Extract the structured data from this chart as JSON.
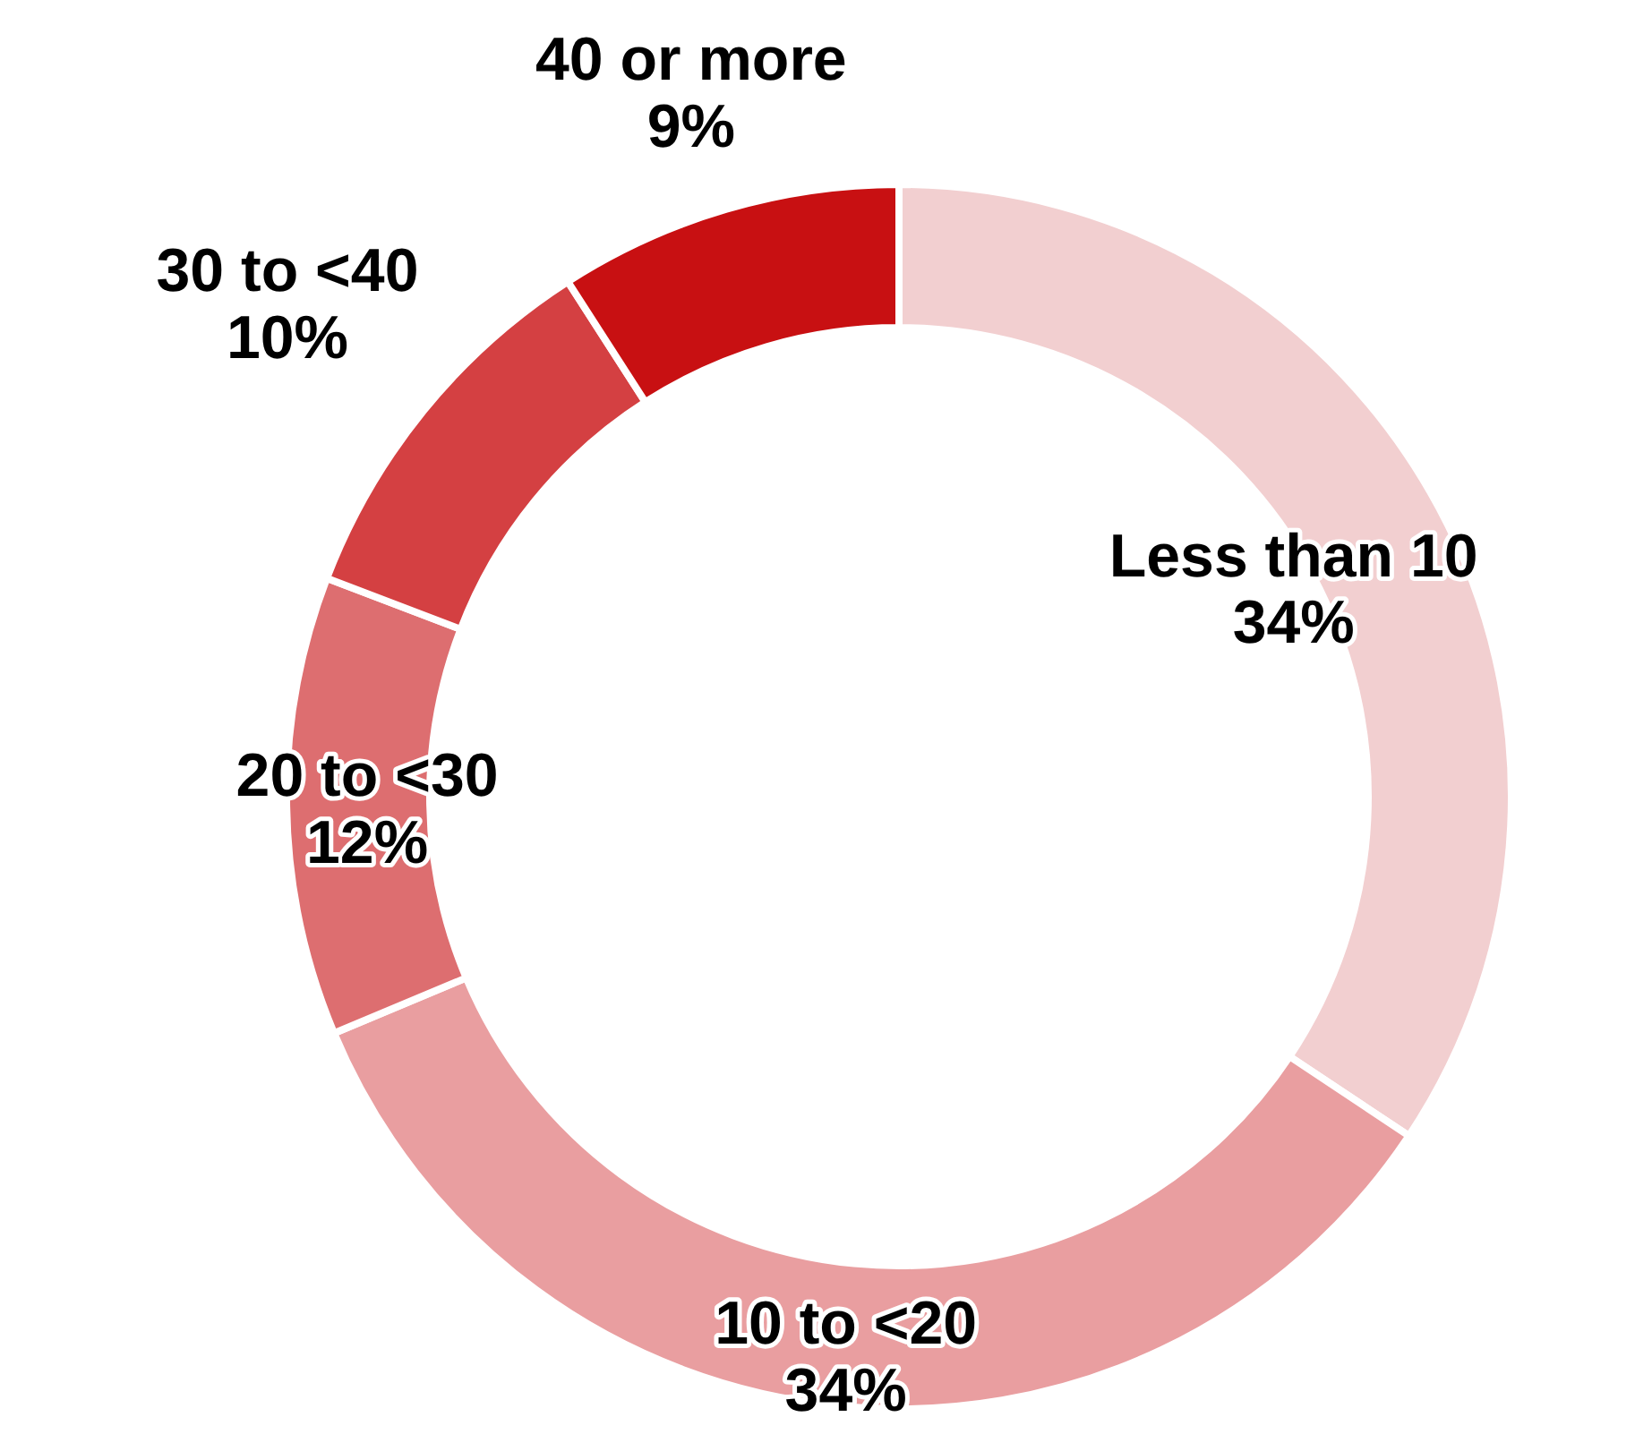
{
  "chart_data": {
    "type": "donut",
    "categories": [
      "Less than 10",
      "10 to <20",
      "20 to <30",
      "30 to <40",
      "40 or more"
    ],
    "values": [
      34,
      34,
      12,
      10,
      9
    ],
    "colors": [
      "#f2cfd0",
      "#e99ea0",
      "#dd6e70",
      "#d44042",
      "#c81012"
    ],
    "value_labels": [
      "34%",
      "34%",
      "12%",
      "10%",
      "9%"
    ],
    "legend": false
  }
}
